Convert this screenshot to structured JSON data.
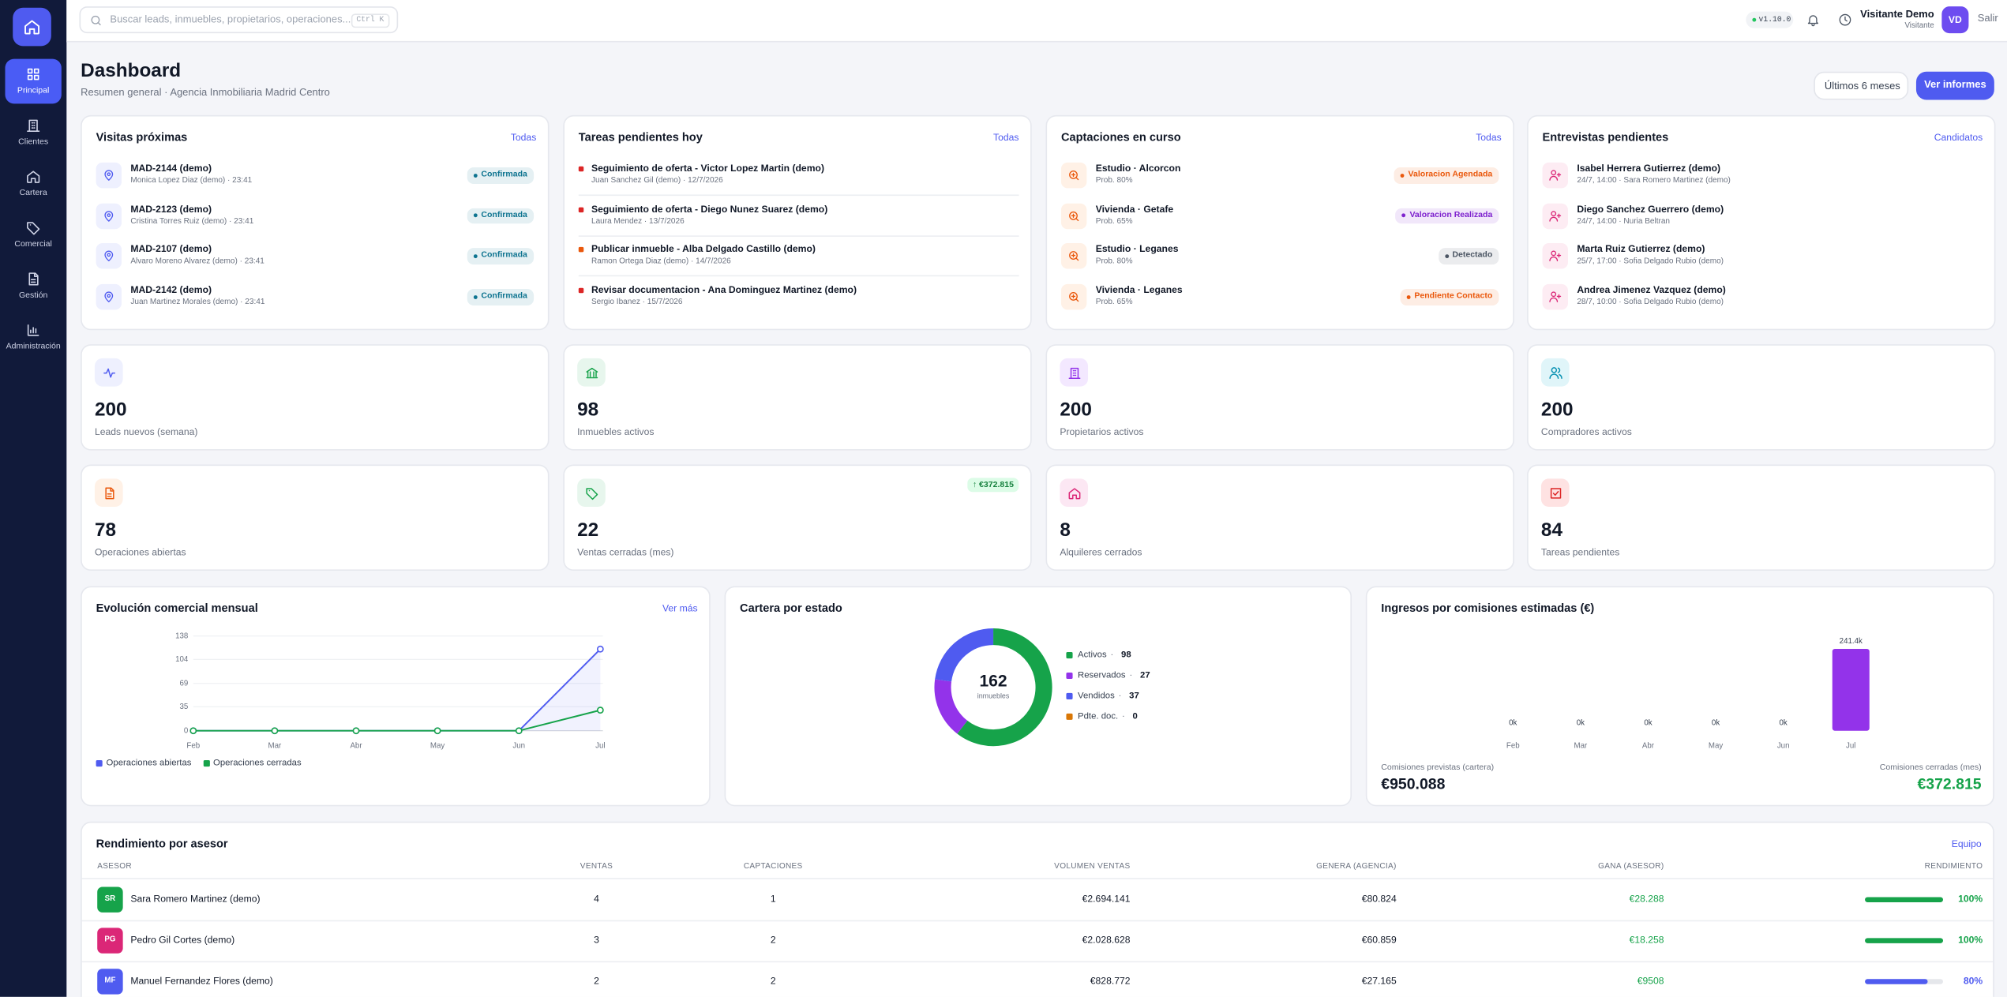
{
  "sidebar": {
    "items": [
      "Principal",
      "Clientes",
      "Cartera",
      "Comercial",
      "Gestión",
      "Administración"
    ]
  },
  "topbar": {
    "search_placeholder": "Buscar leads, inmuebles, propietarios, operaciones...",
    "shortcut": "Ctrl K",
    "version": "v1.10.0",
    "user_name": "Visitante Demo",
    "user_role": "Visitante",
    "avatar": "VD",
    "logout": "Salir"
  },
  "header": {
    "title": "Dashboard",
    "subtitle": "Resumen general · Agencia Inmobiliaria Madrid Centro",
    "buttons": [
      "Últimos 6 meses",
      "Ver informes"
    ]
  },
  "panels": [
    {
      "title": "Visitas próximas",
      "link": "Todas",
      "items": [
        {
          "title": "MAD-2144 (demo)",
          "subtitle": "Monica Lopez Diaz (demo) · 23:41",
          "badge": "Confirmada",
          "color": "#0e7490"
        },
        {
          "title": "MAD-2123 (demo)",
          "subtitle": "Cristina Torres Ruiz (demo) · 23:41",
          "badge": "Confirmada",
          "color": "#0e7490"
        },
        {
          "title": "MAD-2107 (demo)",
          "subtitle": "Alvaro Moreno Alvarez (demo) · 23:41",
          "badge": "Confirmada",
          "color": "#0e7490"
        },
        {
          "title": "MAD-2142 (demo)",
          "subtitle": "Juan Martinez Morales (demo) · 23:41",
          "badge": "Confirmada",
          "color": "#0e7490"
        }
      ]
    },
    {
      "title": "Tareas pendientes hoy",
      "link": "Todas",
      "items": [
        {
          "title": "Seguimiento de oferta - Victor Lopez Martin (demo)",
          "subtitle": "Juan Sanchez Gil (demo) · 12/7/2026",
          "color": "#dc2626"
        },
        {
          "title": "Seguimiento de oferta - Diego Nunez Suarez (demo)",
          "subtitle": "Laura Mendez · 13/7/2026",
          "color": "#dc2626"
        },
        {
          "title": "Publicar inmueble - Alba Delgado Castillo (demo)",
          "subtitle": "Ramon Ortega Diaz (demo) · 14/7/2026",
          "color": "#ea580c"
        },
        {
          "title": "Revisar documentacion - Ana Dominguez Martinez (demo)",
          "subtitle": "Sergio Ibanez · 15/7/2026",
          "color": "#dc2626"
        }
      ]
    },
    {
      "title": "Captaciones en curso",
      "link": "Todas",
      "items": [
        {
          "title": "Estudio · Alcorcon",
          "subtitle": "Prob. 80%",
          "badge": "Valoracion Agendada",
          "color": "#ea580c"
        },
        {
          "title": "Vivienda · Getafe",
          "subtitle": "Prob. 65%",
          "badge": "Valoracion Realizada",
          "color": "#7e22ce"
        },
        {
          "title": "Estudio · Leganes",
          "subtitle": "Prob. 80%",
          "badge": "Detectado",
          "color": "#4b5563"
        },
        {
          "title": "Vivienda · Leganes",
          "subtitle": "Prob. 65%",
          "badge": "Pendiente Contacto",
          "color": "#ea580c"
        }
      ]
    },
    {
      "title": "Entrevistas pendientes",
      "link": "Candidatos",
      "items": [
        {
          "title": "Isabel Herrera Gutierrez (demo)",
          "subtitle": "24/7, 14:00 · Sara Romero Martinez (demo)"
        },
        {
          "title": "Diego Sanchez Guerrero (demo)",
          "subtitle": "24/7, 14:00 · Nuria Beltran"
        },
        {
          "title": "Marta Ruiz Gutierrez (demo)",
          "subtitle": "25/7, 17:00 · Sofia Delgado Rubio (demo)"
        },
        {
          "title": "Andrea Jimenez Vazquez (demo)",
          "subtitle": "28/7, 10:00 · Sofia Delgado Rubio (demo)"
        }
      ]
    }
  ],
  "kpis": [
    {
      "value": 200,
      "label": "Leads nuevos (semana)"
    },
    {
      "value": 98,
      "label": "Inmuebles activos"
    },
    {
      "value": 200,
      "label": "Propietarios activos"
    },
    {
      "value": 200,
      "label": "Compradores activos"
    },
    {
      "value": 78,
      "label": "Operaciones abiertas"
    },
    {
      "value": 22,
      "label": "Ventas cerradas (mes)",
      "badge": "↑ €372.815"
    },
    {
      "value": 8,
      "label": "Alquileres cerrados"
    },
    {
      "value": 84,
      "label": "Tareas pendientes"
    }
  ],
  "chart_data": [
    {
      "type": "line",
      "title": "Evolución comercial mensual",
      "link": "Ver más",
      "categories": [
        "Feb",
        "Mar",
        "Abr",
        "May",
        "Jun",
        "Jul"
      ],
      "series": [
        {
          "name": "Operaciones abiertas",
          "color": "#4f5bf0",
          "values": [
            0,
            0,
            0,
            0,
            0,
            119
          ]
        },
        {
          "name": "Operaciones cerradas",
          "color": "#16a34a",
          "values": [
            0,
            0,
            0,
            0,
            0,
            30
          ]
        }
      ],
      "ylim": [
        0,
        138
      ],
      "yticks": [
        0,
        35,
        69,
        104,
        138
      ],
      "grid": true
    },
    {
      "type": "donut",
      "title": "Cartera por estado",
      "center_value": 162,
      "center_label": "inmuebles",
      "categories": [
        "Activos",
        "Reservados",
        "Vendidos",
        "Pdte. doc."
      ],
      "values": [
        98,
        27,
        37,
        0
      ],
      "colors": [
        "#16a34a",
        "#9333ea",
        "#4f5bf0",
        "#d97706"
      ]
    },
    {
      "type": "bar",
      "title": "Ingresos por comisiones estimadas (€)",
      "categories": [
        "Feb",
        "Mar",
        "Abr",
        "May",
        "Jun",
        "Jul"
      ],
      "values": [
        0,
        0,
        0,
        0,
        0,
        241.4
      ],
      "value_labels": [
        "0k",
        "0k",
        "0k",
        "0k",
        "0k",
        "241.4k"
      ],
      "color": "#9333ea",
      "footer": [
        {
          "label": "Comisiones previstas (cartera)",
          "value": "€950.088"
        },
        {
          "label": "Comisiones cerradas (mes)",
          "value": "€372.815"
        }
      ]
    }
  ],
  "table": {
    "title": "Rendimiento por asesor",
    "link": "Equipo",
    "columns": [
      "ASESOR",
      "VENTAS",
      "CAPTACIONES",
      "VOLUMEN VENTAS",
      "GENERA (AGENCIA)",
      "GANA (ASESOR)",
      "RENDIMIENTO"
    ],
    "rows": [
      {
        "initials": "SR",
        "color": "#16a34a",
        "name": "Sara Romero Martinez (demo)",
        "sales": 4,
        "captures": 1,
        "volume": "€2.694.141",
        "agency": "€80.824",
        "agent": "€28.288",
        "performance": {
          "value": 100,
          "label": "100%"
        },
        "bar_color": "#16a34a"
      },
      {
        "initials": "PG",
        "color": "#db2777",
        "name": "Pedro Gil Cortes (demo)",
        "sales": 3,
        "captures": 2,
        "volume": "€2.028.628",
        "agency": "€60.859",
        "agent": "€18.258",
        "performance": {
          "value": 100,
          "label": "100%"
        },
        "bar_color": "#16a34a"
      },
      {
        "initials": "MF",
        "color": "#4f5bf0",
        "name": "Manuel Fernandez Flores (demo)",
        "sales": 2,
        "captures": 2,
        "volume": "€828.772",
        "agency": "€27.165",
        "agent": "€9508",
        "performance": {
          "value": 80,
          "label": "80%"
        },
        "bar_color": "#4f5bf0"
      }
    ]
  }
}
